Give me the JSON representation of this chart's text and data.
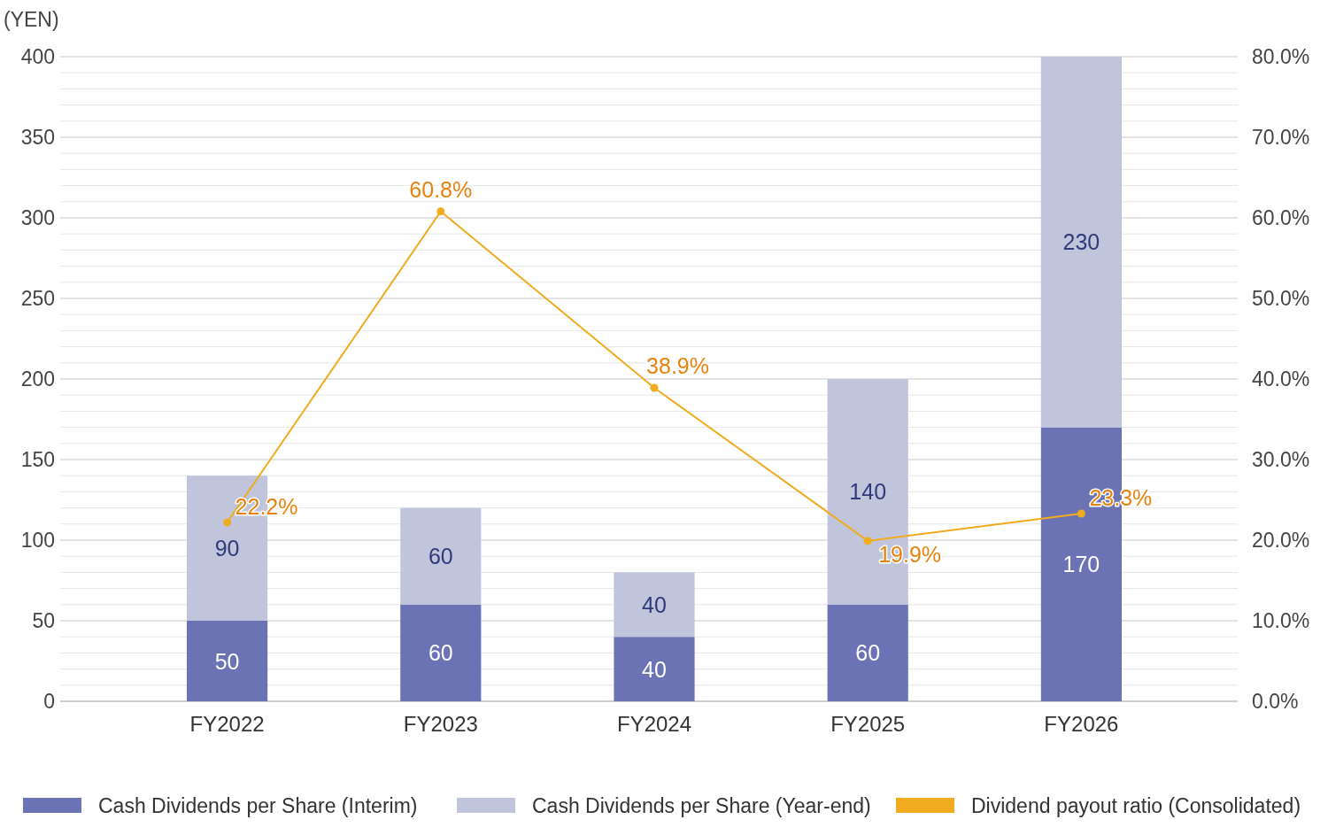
{
  "chart_data": {
    "type": "bar",
    "stacked": true,
    "ylabel": "(YEN)",
    "categories": [
      "FY2022",
      "FY2023",
      "FY2024",
      "FY2025",
      "FY2026"
    ],
    "series": [
      {
        "name": "Cash Dividends per Share (Interim)",
        "color": "#6c73b4",
        "values": [
          50,
          60,
          40,
          60,
          170
        ]
      },
      {
        "name": "Cash Dividends per Share (Year-end)",
        "color": "#c0c5dc",
        "values": [
          90,
          60,
          40,
          140,
          230
        ]
      },
      {
        "name": "Dividend payout ratio (Consolidated)",
        "type": "line",
        "axis": "y2",
        "color": "#f0ab1e",
        "marker": "circle",
        "values": [
          22.2,
          60.8,
          38.9,
          19.9,
          23.3
        ],
        "value_labels": [
          "22.2%",
          "60.8%",
          "38.9%",
          "19.9%",
          "23.3%"
        ]
      }
    ],
    "data_labels": true,
    "ylim": [
      0,
      400
    ],
    "yticks": [
      0,
      {
        "value": 10,
        "label": null
      },
      {
        "value": 20,
        "label": null
      },
      {
        "value": 30,
        "label": null
      },
      {
        "value": 40,
        "label": null
      },
      50,
      {
        "value": 60,
        "label": null
      },
      {
        "value": 70,
        "label": null
      },
      {
        "value": 80,
        "label": null
      },
      {
        "value": 90,
        "label": null
      },
      100,
      {
        "value": 110,
        "label": null
      },
      {
        "value": 120,
        "label": null
      },
      {
        "value": 130,
        "label": null
      },
      {
        "value": 140,
        "label": null
      },
      150,
      {
        "value": 160,
        "label": null
      },
      {
        "value": 170,
        "label": null
      },
      {
        "value": 180,
        "label": null
      },
      {
        "value": 190,
        "label": null
      },
      200,
      {
        "value": 210,
        "label": null
      },
      {
        "value": 220,
        "label": null
      },
      {
        "value": 230,
        "label": null
      },
      {
        "value": 240,
        "label": null
      },
      250,
      {
        "value": 260,
        "label": null
      },
      {
        "value": 270,
        "label": null
      },
      {
        "value": 280,
        "label": null
      },
      {
        "value": 290,
        "label": null
      },
      300,
      {
        "value": 310,
        "label": null
      },
      {
        "value": 320,
        "label": null
      },
      {
        "value": 330,
        "label": null
      },
      {
        "value": 340,
        "label": null
      },
      350,
      {
        "value": 360,
        "label": null
      },
      {
        "value": 370,
        "label": null
      },
      {
        "value": 380,
        "label": null
      },
      {
        "value": 390,
        "label": null
      },
      400
    ],
    "y2lim": [
      0,
      80
    ],
    "y2ticks": [
      {
        "value": 0,
        "label": "0.0%"
      },
      {
        "value": 10,
        "label": "10.0%"
      },
      {
        "value": 20,
        "label": "20.0%"
      },
      {
        "value": 30,
        "label": "30.0%"
      },
      {
        "value": 40,
        "label": "40.0%"
      },
      {
        "value": 50,
        "label": "50.0%"
      },
      {
        "value": 60,
        "label": "60.0%"
      },
      {
        "value": 70,
        "label": "70.0%"
      },
      {
        "value": 80,
        "label": "80.0%"
      }
    ],
    "grid": "y",
    "legend": "bottom"
  }
}
